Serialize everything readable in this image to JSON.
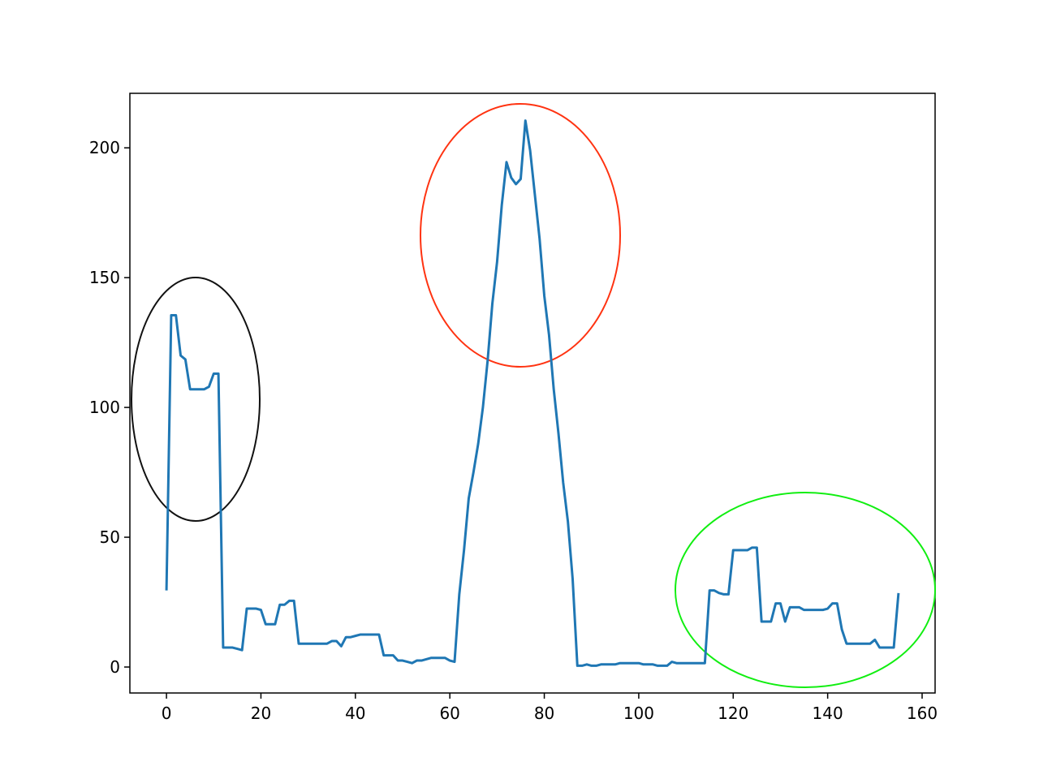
{
  "chart_data": {
    "type": "line",
    "x": [
      0,
      1,
      2,
      3,
      4,
      5,
      6,
      7,
      8,
      9,
      10,
      11,
      12,
      13,
      14,
      15,
      16,
      17,
      18,
      19,
      20,
      21,
      22,
      23,
      24,
      25,
      26,
      27,
      28,
      29,
      30,
      31,
      32,
      33,
      34,
      35,
      36,
      37,
      38,
      39,
      40,
      41,
      42,
      43,
      44,
      45,
      46,
      47,
      48,
      49,
      50,
      51,
      52,
      53,
      54,
      55,
      56,
      57,
      58,
      59,
      60,
      61,
      62,
      63,
      64,
      65,
      66,
      67,
      68,
      69,
      70,
      71,
      72,
      73,
      74,
      75,
      76,
      77,
      78,
      79,
      80,
      81,
      82,
      83,
      84,
      85,
      86,
      87,
      88,
      89,
      90,
      91,
      92,
      93,
      94,
      95,
      96,
      97,
      98,
      99,
      100,
      101,
      102,
      103,
      104,
      105,
      106,
      107,
      108,
      109,
      110,
      111,
      112,
      113,
      114,
      115,
      116,
      117,
      118,
      119,
      120,
      121,
      122,
      123,
      124,
      125,
      126,
      127,
      128,
      129,
      130,
      131,
      132,
      133,
      134,
      135,
      136,
      137,
      138,
      139,
      140,
      141,
      142,
      143,
      144,
      145,
      146,
      147,
      148,
      149,
      150,
      151,
      152,
      153,
      154,
      155
    ],
    "series": [
      {
        "color": "#1f77b4",
        "values": [
          29.5,
          135.5,
          135.5,
          120,
          118.5,
          107,
          107,
          107,
          107,
          108,
          113,
          113,
          7.5,
          7.5,
          7.5,
          7,
          6.5,
          22.5,
          22.5,
          22.5,
          22,
          16.5,
          16.5,
          16.5,
          24,
          24,
          25.5,
          25.5,
          9,
          9,
          9,
          9,
          9,
          9,
          9,
          10,
          10,
          8,
          11.5,
          11.5,
          12,
          12.5,
          12.5,
          12.5,
          12.5,
          12.5,
          4.5,
          4.5,
          4.5,
          2.5,
          2.5,
          2,
          1.5,
          2.5,
          2.5,
          3,
          3.5,
          3.5,
          3.5,
          3.5,
          2.5,
          2,
          28,
          45,
          65,
          75,
          86,
          100,
          118,
          140,
          156,
          178,
          194.5,
          188.5,
          186,
          188,
          210.5,
          199,
          182,
          165,
          143,
          128,
          107,
          90,
          71,
          56,
          34,
          0.5,
          0.5,
          1,
          0.5,
          0.5,
          1,
          1,
          1,
          1,
          1.5,
          1.5,
          1.5,
          1.5,
          1.5,
          1,
          1,
          1,
          0.5,
          0.5,
          0.5,
          2,
          1.5,
          1.5,
          1.5,
          1.5,
          1.5,
          1.5,
          1.5,
          29.5,
          29.5,
          28.5,
          28,
          28,
          45,
          45,
          45,
          45,
          46,
          46,
          17.5,
          17.5,
          17.5,
          24.5,
          24.5,
          17.5,
          23,
          23,
          23,
          22,
          22,
          22,
          22,
          22,
          22.5,
          24.5,
          24.5,
          14.5,
          9,
          9,
          9,
          9,
          9,
          9,
          10.5,
          7.5,
          7.5,
          7.5,
          7.5,
          28.5
        ]
      }
    ],
    "xlim": [
      -7.75,
      162.75
    ],
    "ylim": [
      -10,
      221
    ],
    "xticks": [
      0,
      20,
      40,
      60,
      80,
      100,
      120,
      140,
      160
    ],
    "yticks": [
      0,
      50,
      100,
      150,
      200
    ]
  }
}
